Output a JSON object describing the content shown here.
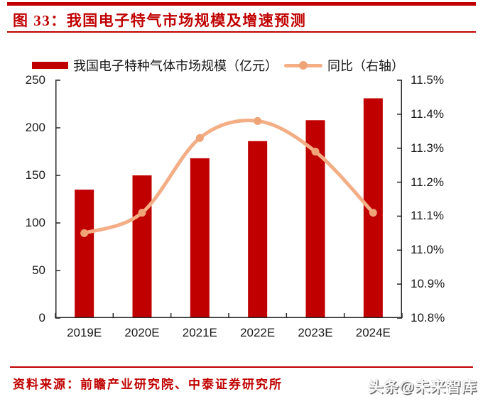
{
  "figure": {
    "title": "图 33：我国电子特气市场规模及增速预测",
    "accent_color": "#c00000"
  },
  "legend": {
    "bar_label": "我国电子特种气体市场规模（亿元）",
    "line_label": "同比（右轴）"
  },
  "chart_data": {
    "type": "bar",
    "subtype": "bar+line dual-axis",
    "title": "我国电子特气市场规模及增速预测",
    "categories": [
      "2019E",
      "2020E",
      "2021E",
      "2022E",
      "2023E",
      "2024E"
    ],
    "series": [
      {
        "name": "我国电子特种气体市场规模（亿元）",
        "type": "bar",
        "axis": "left",
        "color": "#c00000",
        "values": [
          135,
          150,
          168,
          186,
          208,
          231
        ]
      },
      {
        "name": "同比（右轴）",
        "type": "line",
        "axis": "right",
        "color": "#f3ae85",
        "marker_color": "#efa478",
        "values": [
          11.05,
          11.11,
          11.33,
          11.38,
          11.29,
          11.11
        ],
        "unit": "%"
      }
    ],
    "left_axis": {
      "min": 0,
      "max": 250,
      "step": 50,
      "tick_labels": [
        "0",
        "50",
        "100",
        "150",
        "200",
        "250"
      ]
    },
    "right_axis": {
      "min": 10.8,
      "max": 11.5,
      "step": 0.1,
      "tick_labels": [
        "10.8%",
        "10.9%",
        "11.0%",
        "11.1%",
        "11.2%",
        "11.3%",
        "11.4%",
        "11.5%"
      ]
    },
    "grid": false,
    "legend_position": "top"
  },
  "source": {
    "text": "资料来源：前瞻产业研究院、中泰证券研究所"
  },
  "watermark": {
    "text": "头条@未来智库"
  }
}
